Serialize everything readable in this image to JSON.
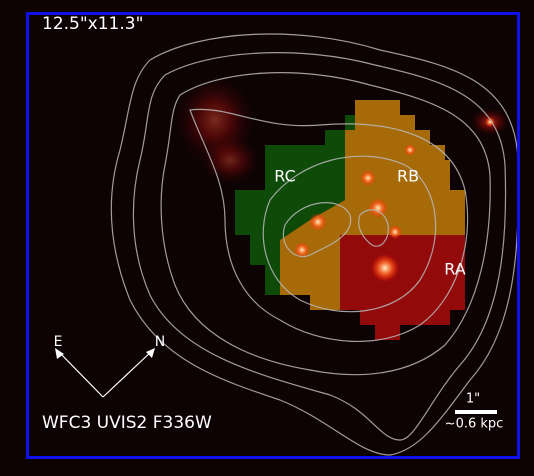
{
  "image": {
    "field_size": "12.5\"x11.3\"",
    "regions": [
      "RC",
      "RB",
      "RA"
    ],
    "compass": {
      "east": "E",
      "north": "N"
    },
    "filter": "WFC3 UVIS2 F336W",
    "scale_bar": {
      "angular": "1\"",
      "physical": "~0.6 kpc"
    }
  }
}
